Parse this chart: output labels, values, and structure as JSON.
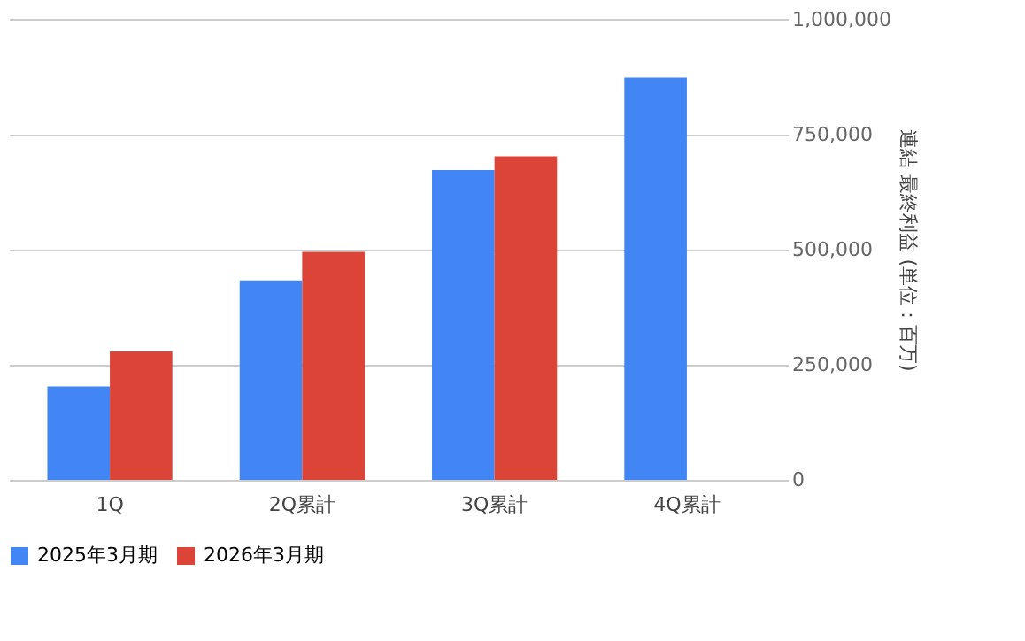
{
  "chart_data": {
    "type": "bar",
    "y2label": "連結 最終利益 (単位：百万)",
    "categories": [
      "1Q",
      "2Q累計",
      "3Q累計",
      "4Q累計"
    ],
    "series": [
      {
        "name": "2025年3月期",
        "color": "#4285f4",
        "values": [
          203000,
          433000,
          673000,
          874000
        ],
        "axis": "y2"
      },
      {
        "name": "2026年3月期",
        "color": "#db4437",
        "values": [
          279000,
          495000,
          703000,
          null
        ],
        "axis": "y2"
      }
    ],
    "y2lim": [
      0,
      1000000
    ],
    "y2ticks": [
      0,
      {
        "value": 250000,
        "label": "250,000"
      },
      {
        "value": 500000,
        "label": "500,000"
      },
      {
        "value": 750000,
        "label": "750,000"
      },
      {
        "value": 1000000,
        "label": "1,000,000"
      }
    ],
    "grid": "y",
    "legend": "bottom"
  }
}
